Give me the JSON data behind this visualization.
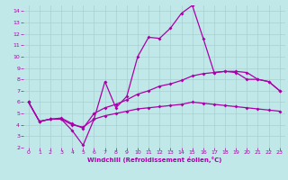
{
  "bg_color": "#c0e8e8",
  "grid_color": "#a8d0d0",
  "line_color": "#aa00aa",
  "xlabel": "Windchill (Refroidissement éolien,°C)",
  "xlabel_color": "#aa00aa",
  "tick_color": "#aa00aa",
  "xlim": [
    -0.5,
    23.5
  ],
  "ylim": [
    2,
    14.5
  ],
  "xticks": [
    0,
    1,
    2,
    3,
    4,
    5,
    6,
    7,
    8,
    9,
    10,
    11,
    12,
    13,
    14,
    15,
    16,
    17,
    18,
    19,
    20,
    21,
    22,
    23
  ],
  "yticks": [
    2,
    3,
    4,
    5,
    6,
    7,
    8,
    9,
    10,
    11,
    12,
    13,
    14
  ],
  "line1_x": [
    0,
    1,
    2,
    3,
    4,
    5,
    6,
    7,
    8,
    9,
    10,
    11,
    12,
    13,
    14,
    15,
    16,
    17,
    18,
    19,
    20,
    21,
    22,
    23
  ],
  "line1_y": [
    6.0,
    4.3,
    4.5,
    4.5,
    3.5,
    2.2,
    4.5,
    7.8,
    5.5,
    6.5,
    10.0,
    11.7,
    11.6,
    12.5,
    13.8,
    14.5,
    11.6,
    8.6,
    8.7,
    8.6,
    8.0,
    8.0,
    7.8,
    7.0
  ],
  "line2_x": [
    0,
    1,
    2,
    3,
    4,
    5,
    6,
    7,
    8,
    9,
    10,
    11,
    12,
    13,
    14,
    15,
    16,
    17,
    18,
    19,
    20,
    21,
    22,
    23
  ],
  "line2_y": [
    6.0,
    4.3,
    4.5,
    4.6,
    4.1,
    3.7,
    5.0,
    5.5,
    5.8,
    6.2,
    6.7,
    7.0,
    7.4,
    7.6,
    7.9,
    8.3,
    8.5,
    8.6,
    8.7,
    8.7,
    8.6,
    8.0,
    7.8,
    7.0
  ],
  "line3_x": [
    0,
    1,
    2,
    3,
    4,
    5,
    6,
    7,
    8,
    9,
    10,
    11,
    12,
    13,
    14,
    15,
    16,
    17,
    18,
    19,
    20,
    21,
    22,
    23
  ],
  "line3_y": [
    6.0,
    4.3,
    4.5,
    4.5,
    4.0,
    3.8,
    4.5,
    4.8,
    5.0,
    5.2,
    5.4,
    5.5,
    5.6,
    5.7,
    5.8,
    6.0,
    5.9,
    5.8,
    5.7,
    5.6,
    5.5,
    5.4,
    5.3,
    5.2
  ],
  "markersize": 2.0,
  "linewidth": 0.9
}
